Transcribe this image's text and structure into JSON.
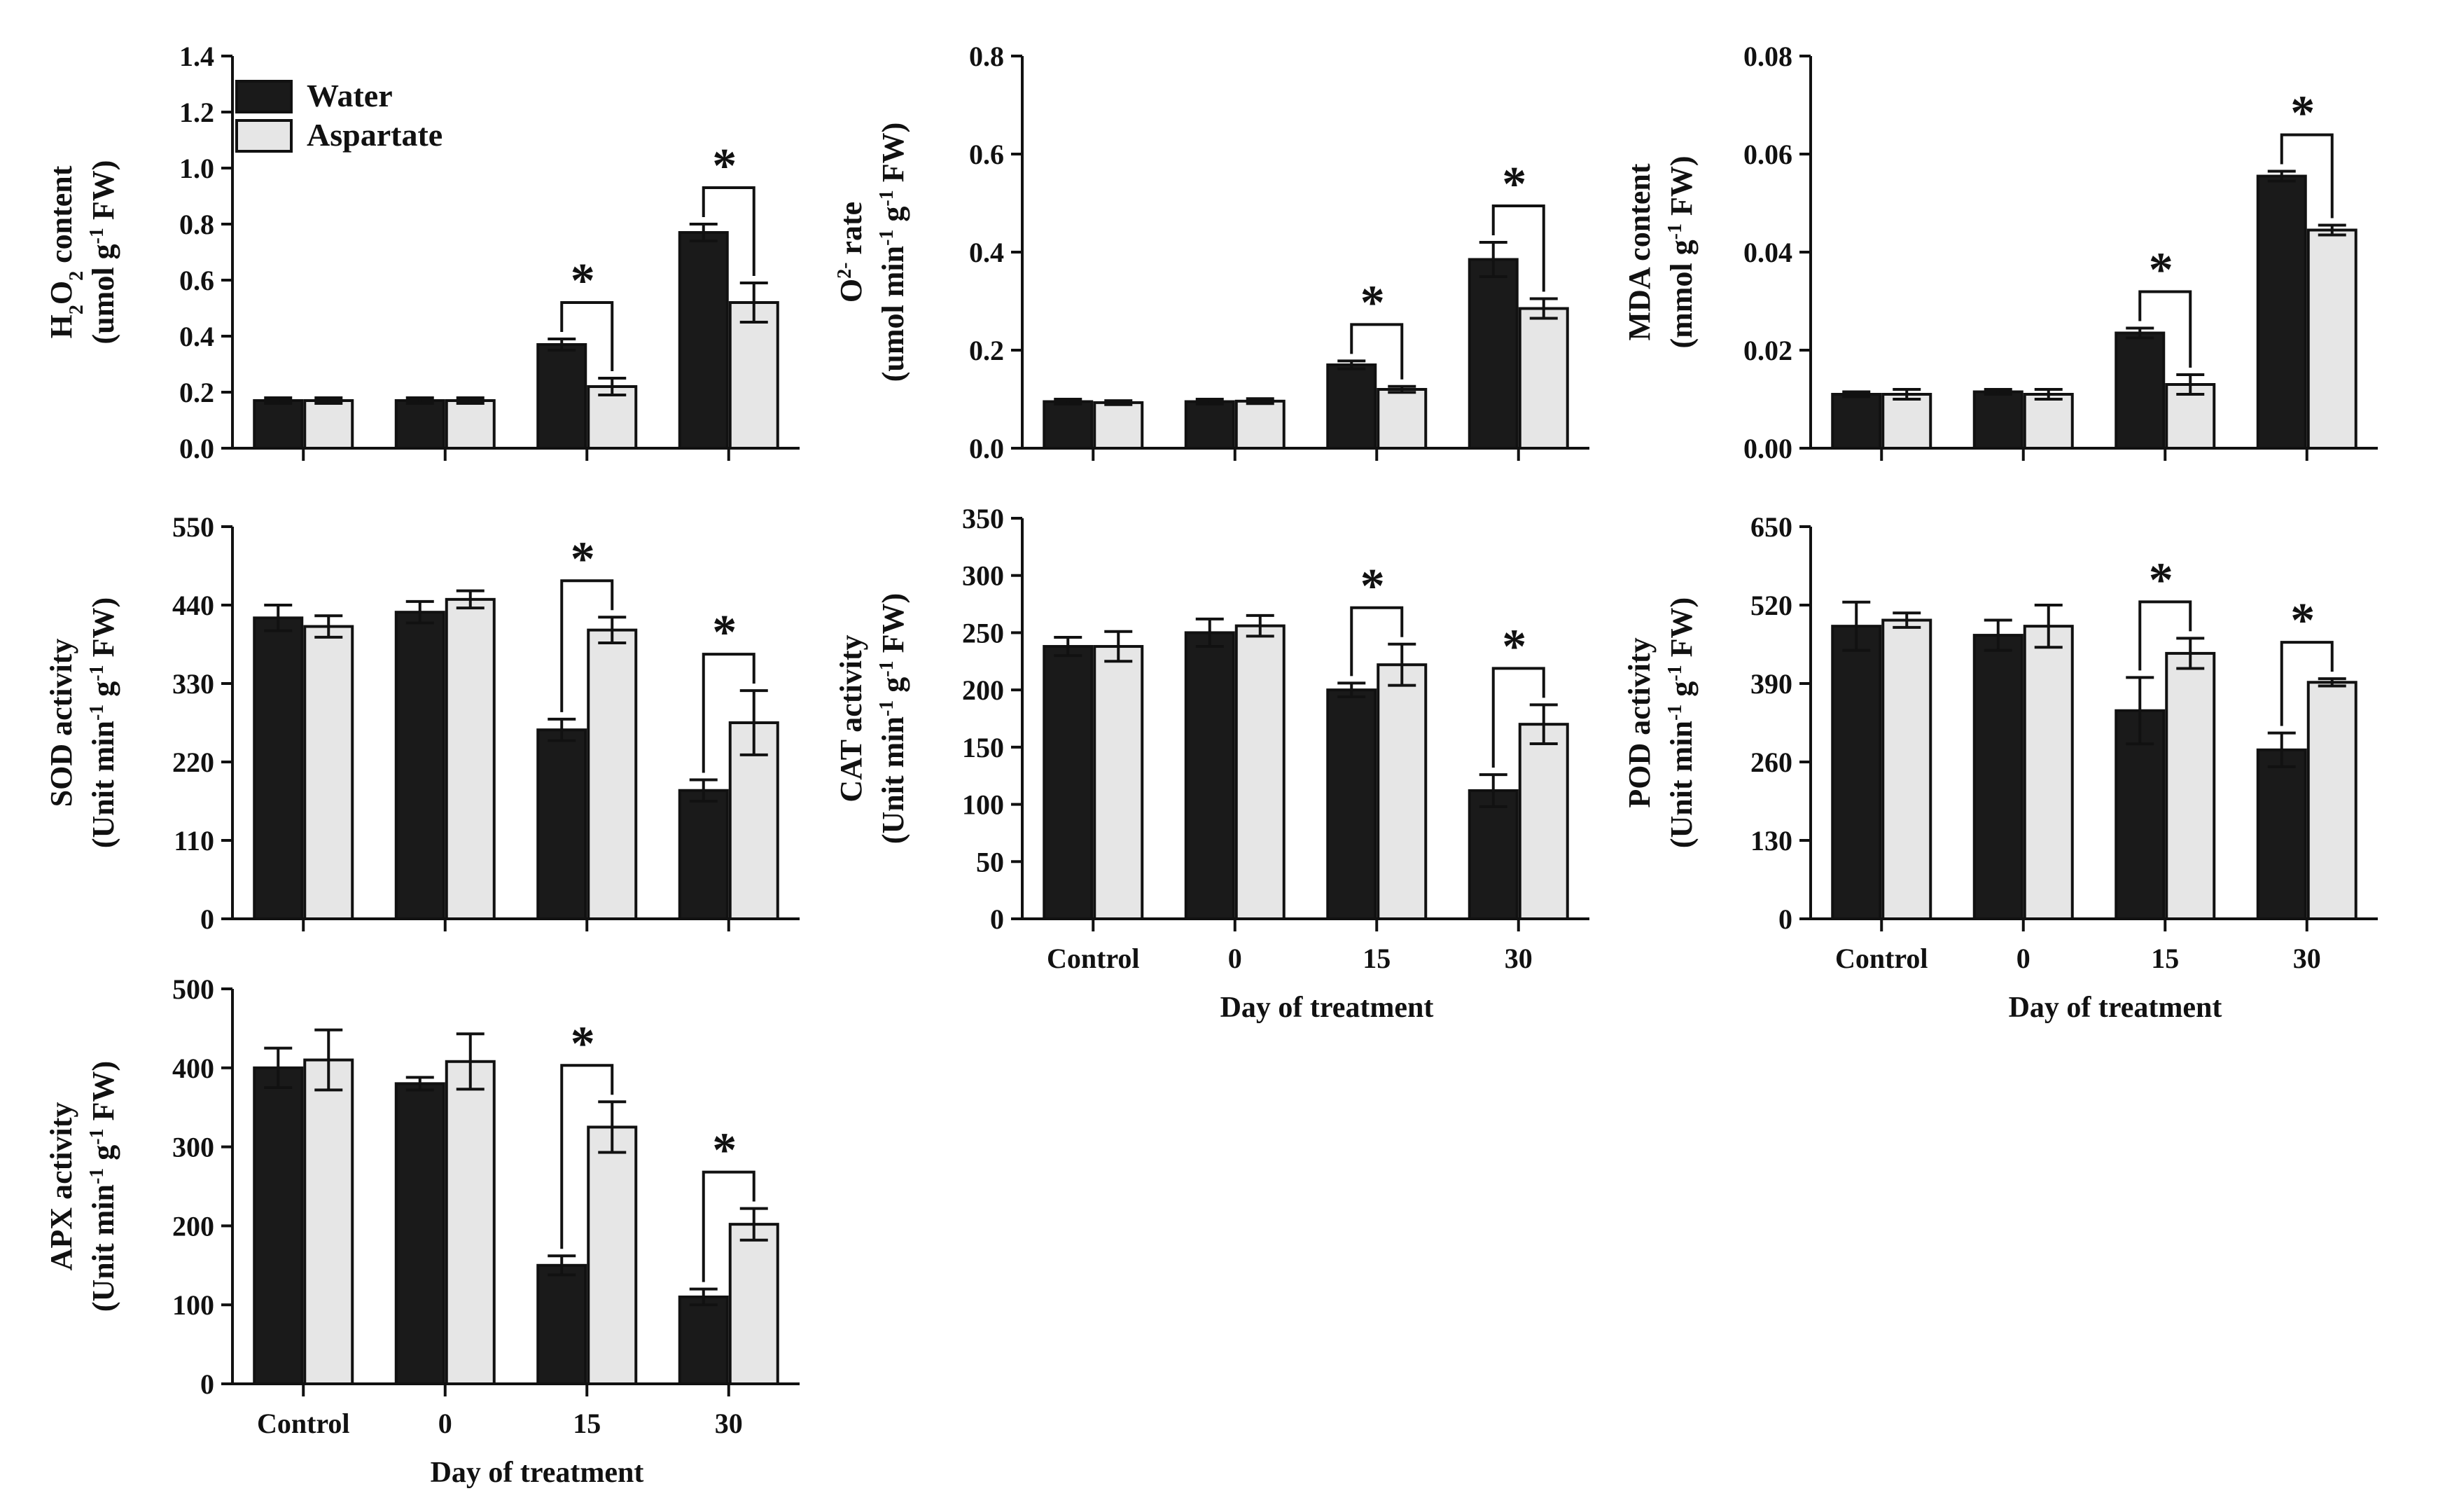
{
  "legend": {
    "series": [
      "Water",
      "Aspartate"
    ]
  },
  "colors": {
    "water": "#1a1a1a",
    "aspartate": "#e6e6e6",
    "outline": "#111111"
  },
  "chart_data": [
    {
      "id": "h2o2",
      "type": "bar",
      "title": "",
      "ylabel_parts": [
        [
          "H",
          ""
        ],
        [
          "2",
          "sub"
        ],
        [
          "O",
          ""
        ],
        [
          "2",
          "sub"
        ],
        [
          " content",
          ""
        ]
      ],
      "ylabel2_parts": [
        [
          "(umol g",
          ""
        ],
        [
          "-1",
          "sup"
        ],
        [
          " FW)",
          ""
        ]
      ],
      "xlabel": "",
      "categories": [
        "Control",
        "0",
        "15",
        "30"
      ],
      "show_x_ticklabels": false,
      "ylim": [
        0,
        1.4
      ],
      "yticks": [
        "0.0",
        "0.2",
        "0.4",
        "0.6",
        "0.8",
        "1.0",
        "1.2",
        "1.4"
      ],
      "series": [
        {
          "name": "Water",
          "values": [
            0.17,
            0.17,
            0.37,
            0.77
          ],
          "errors": [
            0.01,
            0.01,
            0.02,
            0.03
          ]
        },
        {
          "name": "Aspartate",
          "values": [
            0.17,
            0.17,
            0.22,
            0.52
          ],
          "errors": [
            0.01,
            0.01,
            0.03,
            0.07
          ]
        }
      ],
      "significance": [
        {
          "category": "15",
          "label": "*"
        },
        {
          "category": "30",
          "label": "*"
        }
      ],
      "legend": true
    },
    {
      "id": "o2",
      "type": "bar",
      "title": "",
      "ylabel_parts": [
        [
          "O",
          ""
        ],
        [
          "2-",
          "sup"
        ],
        [
          " rate",
          ""
        ]
      ],
      "ylabel2_parts": [
        [
          "(umol min",
          ""
        ],
        [
          "-1",
          "sup"
        ],
        [
          " g",
          ""
        ],
        [
          "-1",
          "sup"
        ],
        [
          " FW)",
          ""
        ]
      ],
      "xlabel": "",
      "categories": [
        "Control",
        "0",
        "15",
        "30"
      ],
      "show_x_ticklabels": false,
      "ylim": [
        0,
        0.8
      ],
      "yticks": [
        "0.0",
        "0.2",
        "0.4",
        "0.6",
        "0.8"
      ],
      "series": [
        {
          "name": "Water",
          "values": [
            0.095,
            0.095,
            0.17,
            0.385
          ],
          "errors": [
            0.005,
            0.005,
            0.008,
            0.035
          ]
        },
        {
          "name": "Aspartate",
          "values": [
            0.093,
            0.096,
            0.12,
            0.285
          ],
          "errors": [
            0.004,
            0.005,
            0.006,
            0.02
          ]
        }
      ],
      "significance": [
        {
          "category": "15",
          "label": "*"
        },
        {
          "category": "30",
          "label": "*"
        }
      ],
      "legend": false
    },
    {
      "id": "mda",
      "type": "bar",
      "title": "",
      "ylabel_parts": [
        [
          "MDA content",
          ""
        ]
      ],
      "ylabel2_parts": [
        [
          "(mmol g",
          ""
        ],
        [
          "-1",
          "sup"
        ],
        [
          " FW)",
          ""
        ]
      ],
      "xlabel": "",
      "categories": [
        "Control",
        "0",
        "15",
        "30"
      ],
      "show_x_ticklabels": false,
      "ylim": [
        0,
        0.08
      ],
      "yticks": [
        "0.00",
        "0.02",
        "0.04",
        "0.06",
        "0.08"
      ],
      "series": [
        {
          "name": "Water",
          "values": [
            0.011,
            0.0115,
            0.0235,
            0.0555
          ],
          "errors": [
            0.0005,
            0.0005,
            0.001,
            0.001
          ]
        },
        {
          "name": "Aspartate",
          "values": [
            0.011,
            0.011,
            0.013,
            0.0445
          ],
          "errors": [
            0.001,
            0.001,
            0.002,
            0.001
          ]
        }
      ],
      "significance": [
        {
          "category": "15",
          "label": "*"
        },
        {
          "category": "30",
          "label": "*"
        }
      ],
      "legend": false
    },
    {
      "id": "sod",
      "type": "bar",
      "title": "",
      "ylabel_parts": [
        [
          "SOD activity",
          ""
        ]
      ],
      "ylabel2_parts": [
        [
          "(Unit min",
          ""
        ],
        [
          "-1",
          "sup"
        ],
        [
          " g",
          ""
        ],
        [
          "-1",
          "sup"
        ],
        [
          " FW)",
          ""
        ]
      ],
      "xlabel": "",
      "categories": [
        "Control",
        "0",
        "15",
        "30"
      ],
      "show_x_ticklabels": false,
      "ylim": [
        0,
        550
      ],
      "yticks": [
        "0",
        "110",
        "220",
        "330",
        "440",
        "550"
      ],
      "series": [
        {
          "name": "Water",
          "values": [
            422,
            430,
            265,
            180
          ],
          "errors": [
            18,
            15,
            15,
            15
          ]
        },
        {
          "name": "Aspartate",
          "values": [
            410,
            448,
            405,
            275
          ],
          "errors": [
            15,
            12,
            18,
            45
          ]
        }
      ],
      "significance": [
        {
          "category": "15",
          "label": "*"
        },
        {
          "category": "30",
          "label": "*"
        }
      ],
      "legend": false
    },
    {
      "id": "cat",
      "type": "bar",
      "title": "",
      "ylabel_parts": [
        [
          "CAT activity",
          ""
        ]
      ],
      "ylabel2_parts": [
        [
          "(Unit min",
          ""
        ],
        [
          "-1",
          "sup"
        ],
        [
          " g",
          ""
        ],
        [
          "-1",
          "sup"
        ],
        [
          " FW)",
          ""
        ]
      ],
      "xlabel": "Day of treatment",
      "categories": [
        "Control",
        "0",
        "15",
        "30"
      ],
      "show_x_ticklabels": true,
      "ylim": [
        0,
        350
      ],
      "yticks": [
        "0",
        "50",
        "100",
        "150",
        "200",
        "250",
        "300",
        "350"
      ],
      "series": [
        {
          "name": "Water",
          "values": [
            238,
            250,
            200,
            112
          ],
          "errors": [
            8,
            12,
            6,
            14
          ]
        },
        {
          "name": "Aspartate",
          "values": [
            238,
            256,
            222,
            170
          ],
          "errors": [
            13,
            9,
            18,
            17
          ]
        }
      ],
      "significance": [
        {
          "category": "15",
          "label": "*"
        },
        {
          "category": "30",
          "label": "*"
        }
      ],
      "legend": false
    },
    {
      "id": "pod",
      "type": "bar",
      "title": "",
      "ylabel_parts": [
        [
          "POD activity",
          ""
        ]
      ],
      "ylabel2_parts": [
        [
          "(Unit min",
          ""
        ],
        [
          "-1",
          "sup"
        ],
        [
          " g",
          ""
        ],
        [
          "-1",
          "sup"
        ],
        [
          " FW)",
          ""
        ]
      ],
      "xlabel": "Day of treatment",
      "categories": [
        "Control",
        "0",
        "15",
        "30"
      ],
      "show_x_ticklabels": true,
      "ylim": [
        0,
        650
      ],
      "yticks": [
        "0",
        "130",
        "260",
        "390",
        "520",
        "650"
      ],
      "series": [
        {
          "name": "Water",
          "values": [
            485,
            470,
            345,
            280
          ],
          "errors": [
            40,
            25,
            55,
            28
          ]
        },
        {
          "name": "Aspartate",
          "values": [
            495,
            485,
            440,
            392
          ],
          "errors": [
            12,
            35,
            25,
            6
          ]
        }
      ],
      "significance": [
        {
          "category": "15",
          "label": "*"
        },
        {
          "category": "30",
          "label": "*"
        }
      ],
      "legend": false
    },
    {
      "id": "apx",
      "type": "bar",
      "title": "",
      "ylabel_parts": [
        [
          "APX activity",
          ""
        ]
      ],
      "ylabel2_parts": [
        [
          "(Unit min",
          ""
        ],
        [
          "-1",
          "sup"
        ],
        [
          " g",
          ""
        ],
        [
          "-1",
          "sup"
        ],
        [
          " FW)",
          ""
        ]
      ],
      "xlabel": "Day of treatment",
      "categories": [
        "Control",
        "0",
        "15",
        "30"
      ],
      "show_x_ticklabels": true,
      "ylim": [
        0,
        500
      ],
      "yticks": [
        "0",
        "100",
        "200",
        "300",
        "400",
        "500"
      ],
      "series": [
        {
          "name": "Water",
          "values": [
            400,
            380,
            150,
            110
          ],
          "errors": [
            25,
            8,
            12,
            10
          ]
        },
        {
          "name": "Aspartate",
          "values": [
            410,
            408,
            325,
            202
          ],
          "errors": [
            38,
            35,
            32,
            20
          ]
        }
      ],
      "significance": [
        {
          "category": "15",
          "label": "*"
        },
        {
          "category": "30",
          "label": "*"
        }
      ],
      "legend": false
    }
  ]
}
